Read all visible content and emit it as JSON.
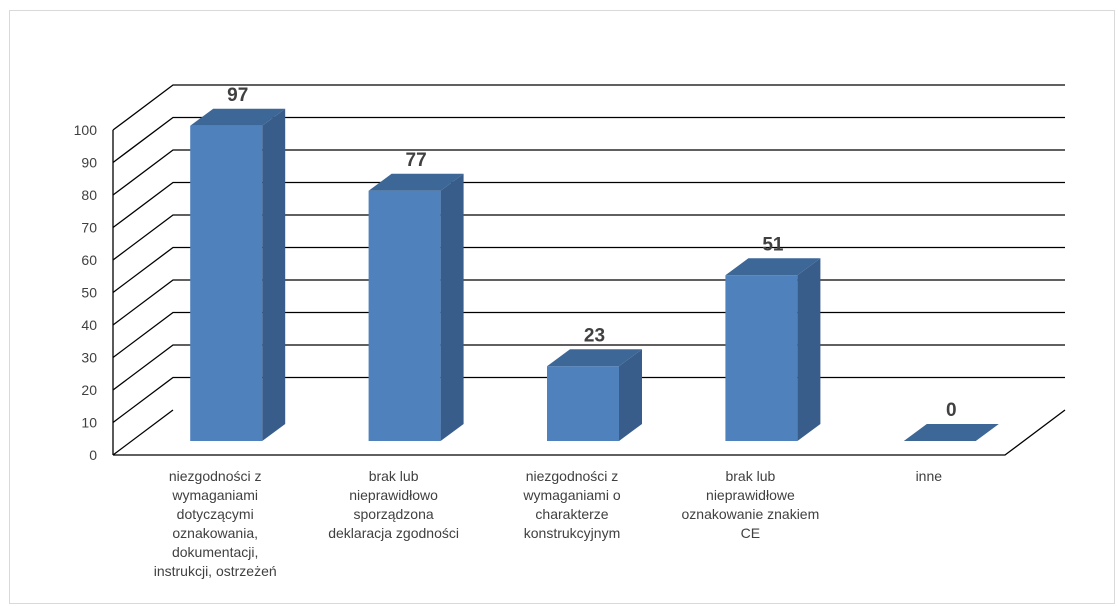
{
  "chart_data": {
    "type": "bar",
    "categories": [
      "niezgodności z\nwymaganiami\ndotyczącymi\noznakowania,\ndokumentacji,\ninstrukcji, ostrzeżeń",
      "brak lub\nnieprawidłowo\nsporządzona\ndeklaracja zgodności",
      "niezgodności z\nwymaganiami o\ncharakterze\nkonstrukcyjnym",
      "brak lub\nnieprawidłowe\noznakowanie znakiem\nCE",
      "inne"
    ],
    "values": [
      97,
      77,
      23,
      51,
      0
    ],
    "ylim": [
      0,
      100
    ],
    "yticks": [
      "0",
      "10",
      "20",
      "30",
      "40",
      "50",
      "60",
      "70",
      "80",
      "90",
      "100"
    ],
    "grid": true,
    "style": "3d-column",
    "colors": {
      "front": "#4f81bd",
      "side": "#385d8a",
      "top": "#3d6797",
      "grid": "#000000",
      "text": "#404040"
    }
  }
}
